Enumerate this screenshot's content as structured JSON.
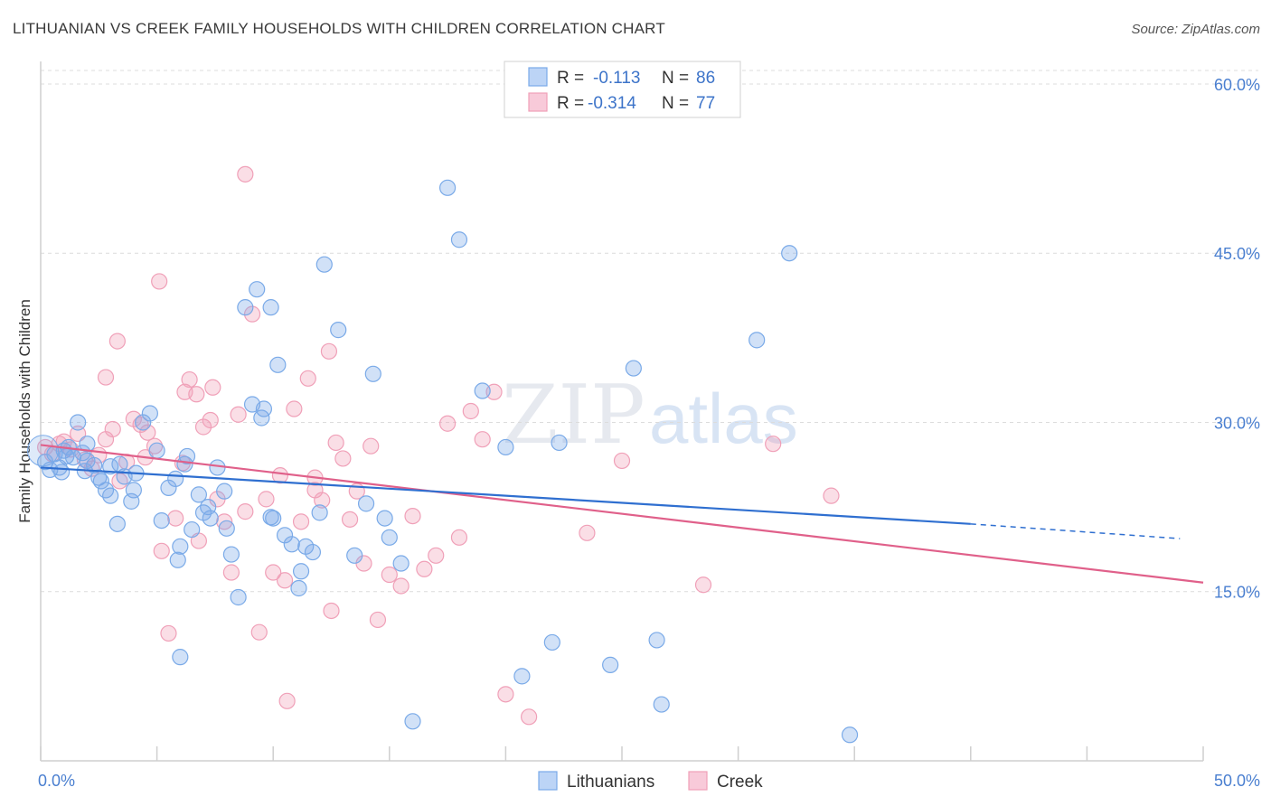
{
  "title": "LITHUANIAN VS CREEK FAMILY HOUSEHOLDS WITH CHILDREN CORRELATION CHART",
  "source": "Source: ZipAtlas.com",
  "watermark": {
    "zip": "ZIP",
    "atlas": "atlas"
  },
  "legend_stats": [
    {
      "r_label": "R =",
      "r_value": "-0.113",
      "n_label": "N =",
      "n_value": "86"
    },
    {
      "r_label": "R =",
      "r_value": "-0.314",
      "n_label": "N =",
      "n_value": "77"
    }
  ],
  "chart_data": {
    "type": "scatter",
    "title": "LITHUANIAN VS CREEK FAMILY HOUSEHOLDS WITH CHILDREN CORRELATION CHART",
    "xlabel": "",
    "ylabel": "Family Households with Children",
    "xlim": [
      0,
      50
    ],
    "ylim": [
      0,
      62
    ],
    "x_tick_labels": [
      "0.0%",
      "50.0%"
    ],
    "y_ticks": [
      15,
      30,
      45,
      60
    ],
    "y_tick_labels": [
      "15.0%",
      "30.0%",
      "45.0%",
      "60.0%"
    ],
    "grid": true,
    "legend_position": "top-center",
    "colors": {
      "lithuanians": "#7aaae8",
      "creek": "#f0a0b8",
      "lithuanians_line": "#2f6fd0",
      "creek_line": "#e0608a"
    },
    "series": [
      {
        "name": "Lithuanians",
        "r": -0.113,
        "n": 86,
        "trend": {
          "x_start": 0,
          "y_start": 26.0,
          "x_end": 40,
          "y_end": 21.0,
          "dashed_to_x": 49,
          "dashed_to_y": 19.7
        },
        "points": [
          [
            0.2,
            26.5
          ],
          [
            0.4,
            25.8
          ],
          [
            0.6,
            27.2
          ],
          [
            0.8,
            26.0
          ],
          [
            1.0,
            27.5
          ],
          [
            1.2,
            27.8
          ],
          [
            1.4,
            26.9
          ],
          [
            1.6,
            30.0
          ],
          [
            1.8,
            27.3
          ],
          [
            2.0,
            28.1
          ],
          [
            2.3,
            26.2
          ],
          [
            2.5,
            25.1
          ],
          [
            2.8,
            24.0
          ],
          [
            3.0,
            23.5
          ],
          [
            3.3,
            21.0
          ],
          [
            3.6,
            25.2
          ],
          [
            3.9,
            23.0
          ],
          [
            4.1,
            25.5
          ],
          [
            4.4,
            30.0
          ],
          [
            4.7,
            30.8
          ],
          [
            5.0,
            27.5
          ],
          [
            5.2,
            21.3
          ],
          [
            5.5,
            24.2
          ],
          [
            5.8,
            25.0
          ],
          [
            6.0,
            19.0
          ],
          [
            6.2,
            26.3
          ],
          [
            6.5,
            20.5
          ],
          [
            6.8,
            23.6
          ],
          [
            7.0,
            22.0
          ],
          [
            7.3,
            21.5
          ],
          [
            7.6,
            26.0
          ],
          [
            7.9,
            23.9
          ],
          [
            8.2,
            18.3
          ],
          [
            8.5,
            14.5
          ],
          [
            8.8,
            40.2
          ],
          [
            9.1,
            31.6
          ],
          [
            9.3,
            41.8
          ],
          [
            9.6,
            31.2
          ],
          [
            9.9,
            21.6
          ],
          [
            10.2,
            35.1
          ],
          [
            10.5,
            20.0
          ],
          [
            10.8,
            19.2
          ],
          [
            11.1,
            15.3
          ],
          [
            11.4,
            19.0
          ],
          [
            11.7,
            18.5
          ],
          [
            12.0,
            22.0
          ],
          [
            12.8,
            38.2
          ],
          [
            13.5,
            18.2
          ],
          [
            14.3,
            34.3
          ],
          [
            14.8,
            21.5
          ],
          [
            15.5,
            17.5
          ],
          [
            17.5,
            50.8
          ],
          [
            18.0,
            46.2
          ],
          [
            19.0,
            32.8
          ],
          [
            20.0,
            27.8
          ],
          [
            20.7,
            7.5
          ],
          [
            22.3,
            28.2
          ],
          [
            22.0,
            10.5
          ],
          [
            24.5,
            8.5
          ],
          [
            25.5,
            34.8
          ],
          [
            26.5,
            10.7
          ],
          [
            26.7,
            5.0
          ],
          [
            30.8,
            37.3
          ],
          [
            32.2,
            45.0
          ],
          [
            34.8,
            2.3
          ],
          [
            15.0,
            19.8
          ],
          [
            10.0,
            21.5
          ],
          [
            12.2,
            44.0
          ],
          [
            11.2,
            16.8
          ],
          [
            6.0,
            9.2
          ],
          [
            5.9,
            17.8
          ],
          [
            4.0,
            24.0
          ],
          [
            3.4,
            26.3
          ],
          [
            2.6,
            24.8
          ],
          [
            1.9,
            25.7
          ],
          [
            0.9,
            25.6
          ],
          [
            1.1,
            27.0
          ],
          [
            8.0,
            20.6
          ],
          [
            9.5,
            30.4
          ],
          [
            14.0,
            22.8
          ],
          [
            16.0,
            3.5
          ],
          [
            7.2,
            22.5
          ],
          [
            6.3,
            27.0
          ],
          [
            2.0,
            26.6
          ],
          [
            3.0,
            26.1
          ],
          [
            9.9,
            40.2
          ]
        ]
      },
      {
        "name": "Creek",
        "r": -0.314,
        "n": 77,
        "trend": {
          "x_start": 0,
          "y_start": 28.0,
          "x_end": 50,
          "y_end": 15.8
        },
        "points": [
          [
            0.2,
            27.8
          ],
          [
            0.5,
            27.2
          ],
          [
            0.8,
            28.1
          ],
          [
            1.0,
            28.3
          ],
          [
            1.3,
            27.6
          ],
          [
            1.6,
            29.0
          ],
          [
            1.9,
            26.7
          ],
          [
            2.2,
            25.9
          ],
          [
            2.5,
            27.1
          ],
          [
            2.8,
            28.5
          ],
          [
            3.1,
            29.4
          ],
          [
            3.4,
            24.8
          ],
          [
            3.7,
            26.5
          ],
          [
            4.0,
            30.3
          ],
          [
            4.3,
            29.8
          ],
          [
            4.6,
            29.1
          ],
          [
            4.9,
            27.9
          ],
          [
            5.2,
            18.6
          ],
          [
            5.5,
            11.3
          ],
          [
            5.8,
            21.5
          ],
          [
            6.1,
            26.4
          ],
          [
            6.4,
            33.8
          ],
          [
            6.7,
            32.5
          ],
          [
            7.0,
            29.6
          ],
          [
            7.3,
            30.2
          ],
          [
            7.6,
            23.2
          ],
          [
            7.9,
            21.2
          ],
          [
            8.2,
            16.7
          ],
          [
            8.5,
            30.7
          ],
          [
            8.8,
            22.1
          ],
          [
            9.1,
            39.6
          ],
          [
            9.4,
            11.4
          ],
          [
            9.7,
            23.2
          ],
          [
            10.0,
            16.7
          ],
          [
            10.3,
            25.3
          ],
          [
            10.6,
            5.3
          ],
          [
            10.9,
            31.2
          ],
          [
            11.2,
            21.2
          ],
          [
            11.5,
            33.9
          ],
          [
            11.8,
            24.0
          ],
          [
            12.1,
            23.1
          ],
          [
            12.4,
            36.3
          ],
          [
            12.7,
            28.2
          ],
          [
            13.0,
            26.8
          ],
          [
            13.3,
            21.4
          ],
          [
            13.6,
            23.9
          ],
          [
            13.9,
            17.5
          ],
          [
            14.2,
            27.9
          ],
          [
            14.5,
            12.5
          ],
          [
            15.0,
            16.5
          ],
          [
            15.5,
            15.5
          ],
          [
            16.0,
            21.7
          ],
          [
            16.5,
            17.0
          ],
          [
            17.0,
            18.2
          ],
          [
            17.5,
            29.9
          ],
          [
            18.0,
            19.8
          ],
          [
            18.5,
            31.0
          ],
          [
            19.0,
            28.5
          ],
          [
            19.5,
            32.7
          ],
          [
            20.0,
            5.9
          ],
          [
            21.0,
            3.9
          ],
          [
            23.5,
            20.2
          ],
          [
            25.0,
            26.6
          ],
          [
            28.5,
            15.6
          ],
          [
            31.5,
            28.1
          ],
          [
            34.0,
            23.5
          ],
          [
            8.8,
            52.0
          ],
          [
            5.1,
            42.5
          ],
          [
            3.3,
            37.2
          ],
          [
            2.8,
            34.0
          ],
          [
            6.2,
            32.7
          ],
          [
            7.4,
            33.1
          ],
          [
            12.5,
            13.3
          ],
          [
            10.5,
            16.0
          ],
          [
            11.8,
            25.1
          ],
          [
            4.5,
            26.9
          ],
          [
            6.8,
            19.5
          ]
        ]
      }
    ]
  },
  "bottom_legend": [
    {
      "label": "Lithuanians"
    },
    {
      "label": "Creek"
    }
  ]
}
